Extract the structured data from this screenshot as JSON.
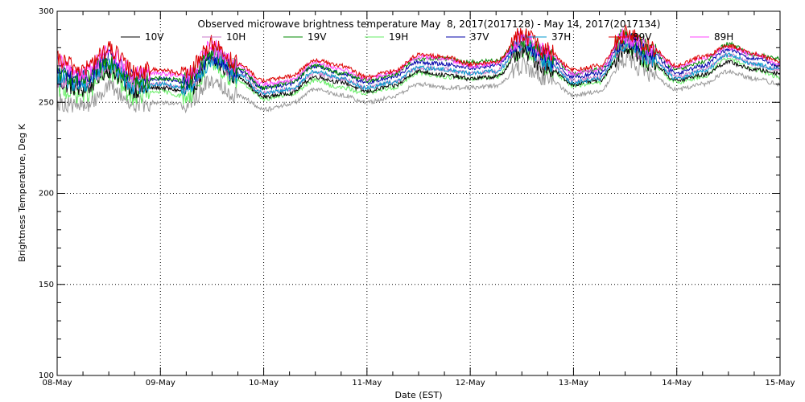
{
  "chart_data": {
    "type": "line",
    "title": "Observed microwave brightness temperature May  8, 2017(2017128) - May 14, 2017(2017134)",
    "xlabel": "Date (EST)",
    "ylabel": "Brightness Temperature, Deg K",
    "xlim": [
      0,
      7
    ],
    "ylim": [
      100,
      300
    ],
    "x_ticks": [
      {
        "value": 0,
        "label": "08-May"
      },
      {
        "value": 1,
        "label": "09-May"
      },
      {
        "value": 2,
        "label": "10-May"
      },
      {
        "value": 3,
        "label": "11-May"
      },
      {
        "value": 4,
        "label": "12-May"
      },
      {
        "value": 5,
        "label": "13-May"
      },
      {
        "value": 6,
        "label": "14-May"
      },
      {
        "value": 7,
        "label": "15-May"
      }
    ],
    "y_ticks": [
      {
        "value": 100,
        "label": "100"
      },
      {
        "value": 150,
        "label": "150"
      },
      {
        "value": 200,
        "label": "200"
      },
      {
        "value": 250,
        "label": "250"
      },
      {
        "value": 300,
        "label": "300"
      }
    ],
    "grid": true,
    "legend_position": "top",
    "x": [
      0,
      0.25,
      0.5,
      0.75,
      1,
      1.25,
      1.5,
      1.75,
      2,
      2.25,
      2.5,
      2.75,
      3,
      3.25,
      3.5,
      3.75,
      4,
      4.25,
      4.5,
      4.75,
      5,
      5.25,
      5.5,
      5.75,
      6,
      6.25,
      6.5,
      6.75,
      7
    ],
    "series": [
      {
        "name": "10V",
        "color": "#000000",
        "values": [
          261,
          257,
          268,
          257,
          258,
          256,
          272,
          264,
          253,
          255,
          264,
          261,
          256,
          259,
          267,
          265,
          263,
          264,
          278,
          269,
          260,
          262,
          280,
          272,
          262,
          265,
          272,
          268,
          266
        ]
      },
      {
        "name": "10H",
        "color": "#c878c8",
        "values": [
          263,
          260,
          270,
          259,
          260,
          258,
          275,
          266,
          255,
          257,
          266,
          263,
          258,
          261,
          269,
          268,
          266,
          267,
          282,
          272,
          262,
          264,
          283,
          274,
          264,
          268,
          276,
          271,
          268
        ]
      },
      {
        "name": "19V",
        "color": "#008800",
        "values": [
          266,
          262,
          273,
          262,
          263,
          262,
          278,
          269,
          258,
          261,
          270,
          266,
          262,
          265,
          274,
          274,
          272,
          273,
          285,
          276,
          266,
          268,
          287,
          279,
          268,
          272,
          282,
          276,
          274
        ]
      },
      {
        "name": "19H",
        "color": "#66ee66",
        "values": [
          257,
          254,
          266,
          253,
          256,
          253,
          270,
          262,
          252,
          254,
          262,
          258,
          255,
          258,
          266,
          264,
          263,
          264,
          279,
          269,
          259,
          261,
          281,
          271,
          261,
          264,
          274,
          268,
          264
        ]
      },
      {
        "name": "37V",
        "color": "#0000aa",
        "values": [
          267,
          263,
          274,
          263,
          263,
          261,
          276,
          268,
          258,
          260,
          270,
          266,
          261,
          264,
          272,
          271,
          269,
          270,
          284,
          275,
          264,
          266,
          285,
          277,
          266,
          270,
          279,
          274,
          270
        ]
      },
      {
        "name": "37H",
        "color": "#0099cc",
        "values": [
          263,
          260,
          271,
          259,
          260,
          258,
          273,
          265,
          255,
          257,
          267,
          263,
          258,
          261,
          269,
          268,
          266,
          267,
          282,
          272,
          261,
          263,
          283,
          274,
          263,
          267,
          276,
          271,
          268
        ]
      },
      {
        "name": "89V",
        "color": "#dd0000",
        "values": [
          273,
          268,
          279,
          267,
          268,
          265,
          282,
          271,
          262,
          264,
          273,
          270,
          264,
          267,
          276,
          275,
          271,
          272,
          287,
          278,
          268,
          270,
          288,
          280,
          270,
          275,
          281,
          277,
          272
        ]
      },
      {
        "name": "89H",
        "color": "#ff44ff",
        "values": [
          271,
          266,
          278,
          265,
          266,
          264,
          280,
          270,
          260,
          262,
          272,
          268,
          263,
          266,
          275,
          274,
          270,
          271,
          286,
          277,
          266,
          268,
          287,
          279,
          269,
          274,
          280,
          276,
          271
        ]
      },
      {
        "color": "#999999",
        "values": [
          250,
          248,
          258,
          249,
          250,
          249,
          262,
          254,
          246,
          249,
          257,
          254,
          250,
          253,
          260,
          258,
          258,
          259,
          270,
          263,
          254,
          256,
          274,
          265,
          257,
          260,
          267,
          263,
          260
        ]
      }
    ]
  }
}
